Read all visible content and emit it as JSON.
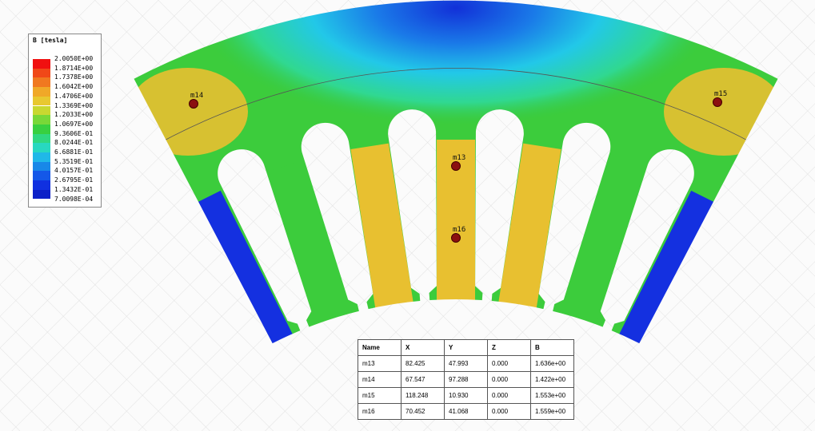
{
  "legend": {
    "title": "B [tesla]",
    "labels": [
      "2.0050E+00",
      "1.8714E+00",
      "1.7378E+00",
      "1.6042E+00",
      "1.4706E+00",
      "1.3369E+00",
      "1.2033E+00",
      "1.0697E+00",
      "9.3606E-01",
      "8.0244E-01",
      "6.6881E-01",
      "5.3519E-01",
      "4.0157E-01",
      "2.6795E-01",
      "1.3432E-01",
      "7.0098E-04"
    ]
  },
  "markers": [
    "m14",
    "m15",
    "m13",
    "m16"
  ],
  "table": {
    "header": [
      "Name",
      "X",
      "Y",
      "Z",
      "B"
    ],
    "rows": [
      [
        "m13",
        "82.425",
        "47.993",
        "0.000",
        "1.636e+00"
      ],
      [
        "m14",
        "67.547",
        "97.288",
        "0.000",
        "1.422e+00"
      ],
      [
        "m15",
        "118.248",
        "10.930",
        "0.000",
        "1.553e+00"
      ],
      [
        "m16",
        "70.452",
        "41.068",
        "0.000",
        "1.559e+00"
      ]
    ]
  }
}
